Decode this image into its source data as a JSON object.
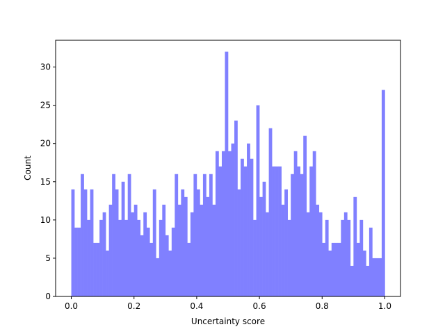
{
  "chart_data": {
    "type": "histogram",
    "xlabel": "Uncertainty score",
    "ylabel": "Count",
    "color": "#8080ff",
    "bins": [
      0,
      0.01,
      0.02,
      0.03,
      0.04,
      0.05,
      0.06,
      0.07,
      0.08,
      0.09,
      0.1,
      0.11,
      0.12,
      0.13,
      0.14,
      0.15,
      0.16,
      0.17,
      0.18,
      0.19,
      0.2,
      0.21,
      0.22,
      0.23,
      0.24,
      0.25,
      0.26,
      0.27,
      0.28,
      0.29,
      0.3,
      0.31,
      0.32,
      0.33,
      0.34,
      0.35,
      0.36,
      0.37,
      0.38,
      0.39,
      0.4,
      0.41,
      0.42,
      0.43,
      0.44,
      0.45,
      0.46,
      0.47,
      0.48,
      0.49,
      0.5,
      0.51,
      0.52,
      0.53,
      0.54,
      0.55,
      0.56,
      0.57,
      0.58,
      0.59,
      0.6,
      0.61,
      0.62,
      0.63,
      0.64,
      0.65,
      0.66,
      0.67,
      0.68,
      0.69,
      0.7,
      0.71,
      0.72,
      0.73,
      0.74,
      0.75,
      0.76,
      0.77,
      0.78,
      0.79,
      0.8,
      0.81,
      0.82,
      0.83,
      0.84,
      0.85,
      0.86,
      0.87,
      0.88,
      0.89,
      0.9,
      0.91,
      0.92,
      0.93,
      0.94,
      0.95,
      0.96,
      0.97,
      0.98,
      0.99,
      1
    ],
    "values": [
      14,
      9,
      9,
      16,
      14,
      10,
      14,
      7,
      7,
      10,
      11,
      6,
      12,
      16,
      14,
      10,
      15,
      10,
      16,
      11,
      12,
      10,
      8,
      11,
      9,
      7,
      14,
      5,
      10,
      12,
      8,
      6,
      9,
      16,
      12,
      14,
      13,
      7,
      11,
      16,
      14,
      12,
      16,
      13,
      16,
      12,
      19,
      17,
      19,
      32,
      19,
      20,
      23,
      14,
      18,
      17,
      20,
      18,
      10,
      25,
      13,
      15,
      11,
      22,
      17,
      17,
      17,
      12,
      14,
      10,
      16,
      19,
      17,
      16,
      21,
      11,
      17,
      19,
      12,
      11,
      7,
      10,
      6,
      7,
      7,
      7,
      10,
      11,
      10,
      4,
      13,
      7,
      10,
      6,
      4,
      9,
      5,
      5,
      5,
      27
    ],
    "xlim": [
      -0.05,
      1.05
    ],
    "ylim": [
      0,
      33.5
    ],
    "xticks": [
      {
        "value": 0,
        "label": "0.0"
      },
      0.2,
      0.4,
      0.6,
      0.8,
      {
        "value": 1,
        "label": "1.0"
      }
    ],
    "yticks": [
      0,
      5,
      10,
      15,
      20,
      25,
      30
    ]
  }
}
